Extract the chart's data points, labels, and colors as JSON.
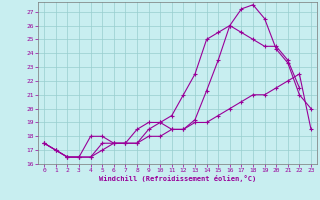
{
  "xlabel": "Windchill (Refroidissement éolien,°C)",
  "background_color": "#c8eef0",
  "grid_color": "#98cece",
  "line_color": "#990099",
  "xlim": [
    -0.5,
    23.5
  ],
  "ylim": [
    16,
    27.7
  ],
  "yticks": [
    16,
    17,
    18,
    19,
    20,
    21,
    22,
    23,
    24,
    25,
    26,
    27
  ],
  "xticks": [
    0,
    1,
    2,
    3,
    4,
    5,
    6,
    7,
    8,
    9,
    10,
    11,
    12,
    13,
    14,
    15,
    16,
    17,
    18,
    19,
    20,
    21,
    22,
    23
  ],
  "line1_x": [
    0,
    1,
    2,
    3,
    4,
    5,
    6,
    7,
    8,
    9,
    10,
    11,
    12,
    13,
    14,
    15,
    16,
    17,
    18,
    19,
    20,
    21,
    22,
    23
  ],
  "line1_y": [
    17.5,
    17.0,
    16.5,
    16.5,
    16.5,
    17.5,
    17.5,
    17.5,
    17.5,
    18.5,
    19.0,
    18.5,
    18.5,
    19.2,
    21.3,
    23.5,
    26.0,
    27.2,
    27.5,
    26.5,
    24.3,
    23.3,
    21.0,
    20.0
  ],
  "line2_x": [
    0,
    1,
    2,
    3,
    4,
    5,
    6,
    7,
    8,
    9,
    10,
    11,
    12,
    13,
    14,
    15,
    16,
    17,
    18,
    19,
    20,
    21,
    22
  ],
  "line2_y": [
    17.5,
    17.0,
    16.5,
    16.5,
    18.0,
    18.0,
    17.5,
    17.5,
    18.5,
    19.0,
    19.0,
    19.5,
    21.0,
    22.5,
    25.0,
    25.5,
    26.0,
    25.5,
    25.0,
    24.5,
    24.5,
    23.5,
    21.5
  ],
  "line3_x": [
    0,
    1,
    2,
    3,
    4,
    5,
    6,
    7,
    8,
    9,
    10,
    11,
    12,
    13,
    14,
    15,
    16,
    17,
    18,
    19,
    20,
    21,
    22,
    23
  ],
  "line3_y": [
    17.5,
    17.0,
    16.5,
    16.5,
    16.5,
    17.0,
    17.5,
    17.5,
    17.5,
    18.0,
    18.0,
    18.5,
    18.5,
    19.0,
    19.0,
    19.5,
    20.0,
    20.5,
    21.0,
    21.0,
    21.5,
    22.0,
    22.5,
    18.5
  ]
}
